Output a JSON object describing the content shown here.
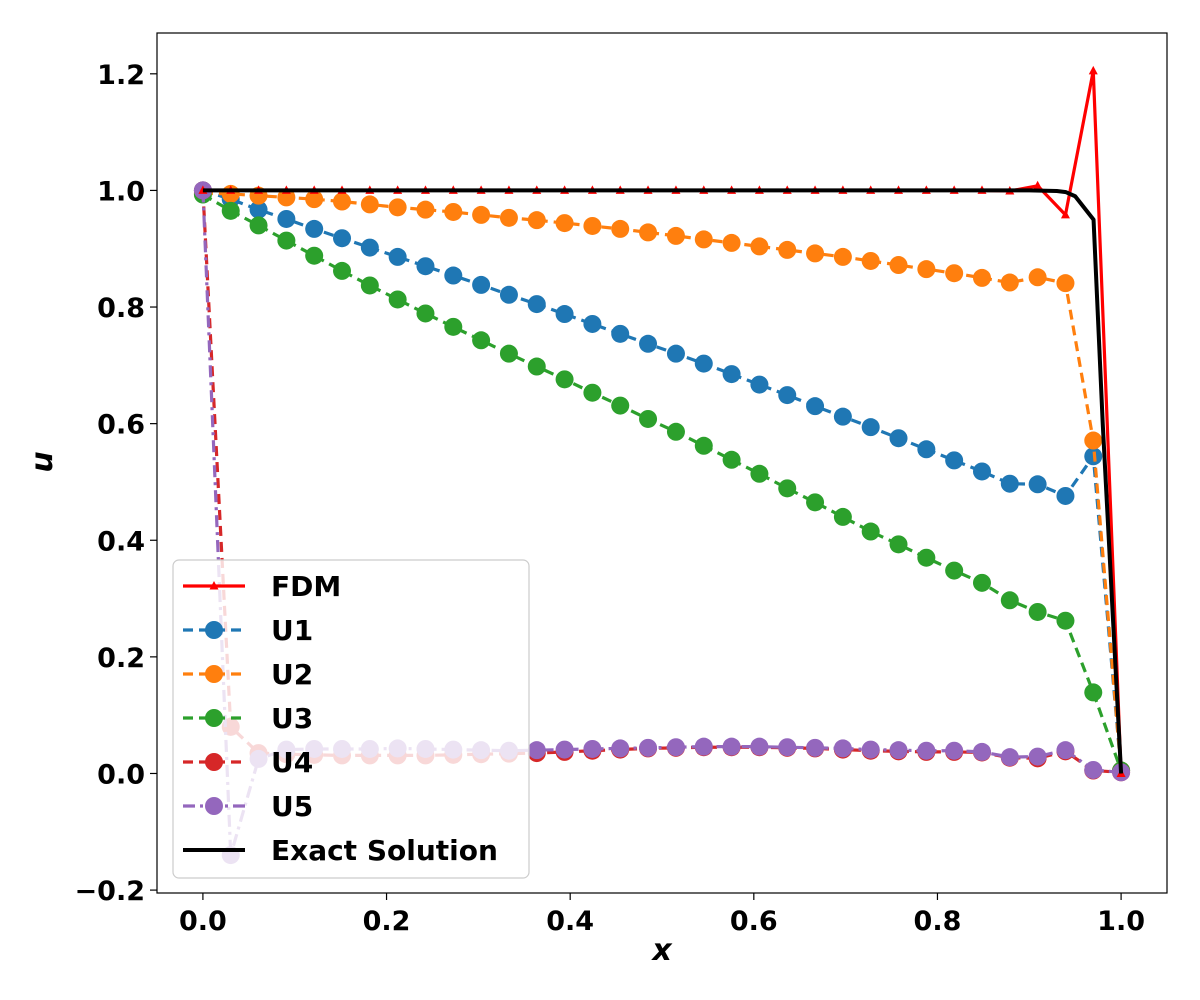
{
  "chart_data": {
    "type": "line",
    "title": "",
    "xlabel": "x",
    "ylabel": "u",
    "xlim": [
      -0.05,
      1.05
    ],
    "ylim": [
      -0.205,
      1.27
    ],
    "xticks": [
      0.0,
      0.2,
      0.4,
      0.6,
      0.8,
      1.0
    ],
    "xtick_labels": [
      "0.0",
      "0.2",
      "0.4",
      "0.6",
      "0.8",
      "1.0"
    ],
    "yticks": [
      -0.2,
      0.0,
      0.2,
      0.4,
      0.6,
      0.8,
      1.0,
      1.2
    ],
    "ytick_labels": [
      "−0.2",
      "0.0",
      "0.2",
      "0.4",
      "0.6",
      "0.8",
      "1.0",
      "1.2"
    ],
    "grid": false,
    "legend_position": "lower-left",
    "x": [
      0.0,
      0.0303,
      0.0606,
      0.0909,
      0.1212,
      0.1515,
      0.1818,
      0.2121,
      0.2424,
      0.2727,
      0.303,
      0.3333,
      0.3636,
      0.3939,
      0.4242,
      0.4545,
      0.4848,
      0.5152,
      0.5455,
      0.5758,
      0.6061,
      0.6364,
      0.6667,
      0.697,
      0.7273,
      0.7576,
      0.7879,
      0.8182,
      0.8485,
      0.8788,
      0.9091,
      0.9394,
      0.9697,
      1.0
    ],
    "series": [
      {
        "name": "FDM",
        "color": "#ff0000",
        "style": "solid",
        "marker": "triangle",
        "values": [
          1.0,
          1.0,
          1.0,
          1.0,
          1.0,
          1.0,
          1.0,
          1.0,
          1.0,
          1.0,
          1.0,
          1.0,
          1.0,
          1.0,
          1.0,
          1.0,
          1.0,
          1.0,
          1.0,
          1.0,
          1.0,
          1.0,
          1.0,
          1.0,
          1.0,
          1.0,
          1.0,
          1.0,
          1.0,
          0.999,
          1.008,
          0.958,
          1.205,
          0.0
        ]
      },
      {
        "name": "U1",
        "color": "#1f77b4",
        "style": "dashed",
        "marker": "circle",
        "values": [
          1.0,
          0.985,
          0.967,
          0.951,
          0.934,
          0.918,
          0.902,
          0.886,
          0.87,
          0.854,
          0.838,
          0.821,
          0.805,
          0.788,
          0.771,
          0.754,
          0.737,
          0.72,
          0.703,
          0.685,
          0.667,
          0.649,
          0.63,
          0.612,
          0.594,
          0.575,
          0.556,
          0.537,
          0.518,
          0.497,
          0.496,
          0.476,
          0.544,
          0.005
        ]
      },
      {
        "name": "U2",
        "color": "#ff7f0e",
        "style": "dashed",
        "marker": "circle",
        "values": [
          0.995,
          0.994,
          0.991,
          0.988,
          0.985,
          0.981,
          0.976,
          0.971,
          0.967,
          0.963,
          0.958,
          0.953,
          0.949,
          0.944,
          0.939,
          0.934,
          0.928,
          0.922,
          0.916,
          0.91,
          0.904,
          0.898,
          0.892,
          0.886,
          0.879,
          0.872,
          0.865,
          0.858,
          0.85,
          0.842,
          0.851,
          0.841,
          0.571,
          0.005
        ]
      },
      {
        "name": "U3",
        "color": "#2ca02c",
        "style": "dashed",
        "marker": "circle",
        "values": [
          0.993,
          0.965,
          0.94,
          0.914,
          0.888,
          0.862,
          0.837,
          0.813,
          0.789,
          0.766,
          0.743,
          0.72,
          0.698,
          0.676,
          0.653,
          0.631,
          0.608,
          0.586,
          0.562,
          0.538,
          0.514,
          0.489,
          0.465,
          0.44,
          0.415,
          0.393,
          0.37,
          0.348,
          0.327,
          0.297,
          0.277,
          0.262,
          0.139,
          0.005
        ]
      },
      {
        "name": "U4",
        "color": "#d62728",
        "style": "dashed",
        "marker": "circle",
        "values": [
          1.0,
          0.08,
          0.035,
          0.033,
          0.032,
          0.031,
          0.031,
          0.031,
          0.031,
          0.032,
          0.033,
          0.034,
          0.035,
          0.037,
          0.039,
          0.041,
          0.043,
          0.044,
          0.045,
          0.045,
          0.045,
          0.044,
          0.043,
          0.041,
          0.039,
          0.038,
          0.037,
          0.037,
          0.036,
          0.027,
          0.026,
          0.038,
          0.005,
          0.002
        ]
      },
      {
        "name": "U5",
        "color": "#9467bd",
        "style": "dashdot",
        "marker": "circle",
        "values": [
          1.0,
          -0.14,
          0.025,
          0.041,
          0.042,
          0.042,
          0.042,
          0.043,
          0.042,
          0.041,
          0.04,
          0.039,
          0.04,
          0.041,
          0.042,
          0.043,
          0.044,
          0.045,
          0.046,
          0.046,
          0.046,
          0.045,
          0.044,
          0.043,
          0.041,
          0.04,
          0.039,
          0.039,
          0.037,
          0.028,
          0.029,
          0.04,
          0.006,
          0.002
        ]
      },
      {
        "name": "Exact Solution",
        "color": "#000000",
        "style": "solid",
        "marker": "none",
        "x": [
          0.0,
          0.8,
          0.9,
          0.93,
          0.94,
          0.95,
          0.97,
          0.98,
          1.0
        ],
        "values": [
          1.0,
          1.0,
          1.0,
          0.999,
          0.997,
          0.99,
          0.95,
          0.6,
          0.0
        ]
      }
    ]
  }
}
